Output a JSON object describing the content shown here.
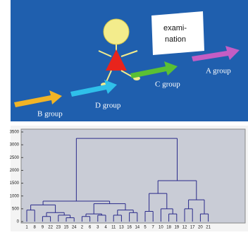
{
  "illustration": {
    "sign": [
      "exami-",
      "nation"
    ],
    "groups": [
      "A group",
      "B group",
      "C group",
      "D group"
    ]
  },
  "chart_data": {
    "type": "dendrogram",
    "ylim": [
      0,
      3500
    ],
    "yticks": [
      0,
      500,
      1000,
      1500,
      2000,
      2500,
      3000,
      3500
    ],
    "color": "#2a2a8a",
    "tree": {
      "height": 3250,
      "children": [
        {
          "height": 800,
          "children": [
            {
              "height": 650,
              "children": [
                {
                  "height": 450,
                  "children": [
                    "1",
                    "8"
                  ]
                },
                {
                  "height": 350,
                  "children": [
                    {
                      "height": 200,
                      "children": [
                        "9",
                        "22"
                      ]
                    },
                    {
                      "height": 250,
                      "children": [
                        "23",
                        {
                          "height": 150,
                          "children": [
                            "15",
                            "24"
                          ]
                        }
                      ]
                    }
                  ]
                }
              ]
            },
            {
              "height": 700,
              "children": [
                {
                  "height": 300,
                  "children": [
                    {
                      "height": 200,
                      "children": [
                        "2",
                        "6"
                      ]
                    },
                    {
                      "height": 250,
                      "children": [
                        "3",
                        "4"
                      ]
                    }
                  ]
                },
                {
                  "height": 450,
                  "children": [
                    {
                      "height": 250,
                      "children": [
                        "11",
                        "13"
                      ]
                    },
                    {
                      "height": 350,
                      "children": [
                        "16",
                        "14"
                      ]
                    }
                  ]
                }
              ]
            }
          ]
        },
        {
          "height": 1600,
          "children": [
            {
              "height": 1100,
              "children": [
                {
                  "height": 400,
                  "children": [
                    "5",
                    "7"
                  ]
                },
                {
                  "height": 500,
                  "children": [
                    "10",
                    {
                      "height": 300,
                      "children": [
                        "18",
                        "19"
                      ]
                    }
                  ]
                }
              ]
            },
            {
              "height": 850,
              "children": [
                {
                  "height": 500,
                  "children": [
                    "12",
                    "17"
                  ]
                },
                {
                  "height": 300,
                  "children": [
                    "20",
                    "21"
                  ]
                }
              ]
            }
          ]
        }
      ]
    }
  }
}
